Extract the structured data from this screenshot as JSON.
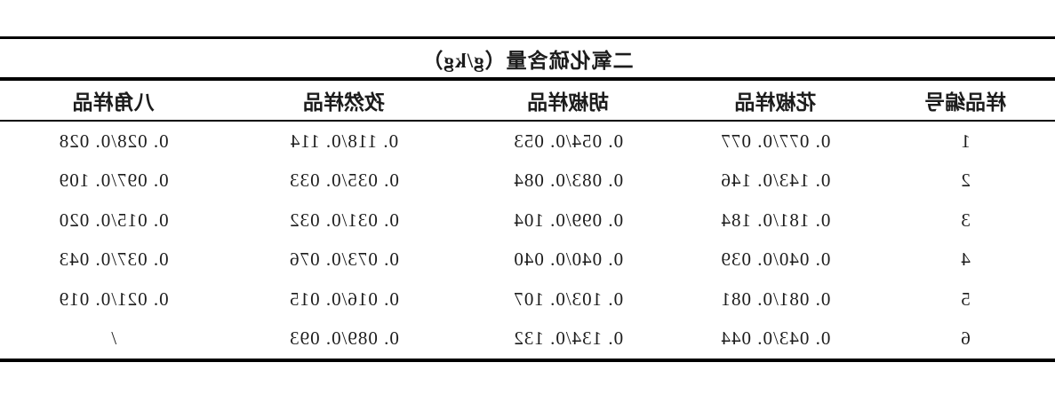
{
  "table": {
    "title": "二氧化硫含量（g/kg）",
    "mirrored_horizontally": true,
    "columns": [
      "样品编号",
      "花椒样品",
      "胡椒样品",
      "孜然样品",
      "八角样品"
    ],
    "rows": [
      [
        "1",
        "0. 077/0. 077",
        "0. 054/0. 053",
        "0. 118/0. 114",
        "0. 028/0. 028"
      ],
      [
        "2",
        "0. 143/0. 146",
        "0. 083/0. 084",
        "0. 035/0. 033",
        "0. 097/0. 109"
      ],
      [
        "3",
        "0. 181/0. 184",
        "0. 099/0. 104",
        "0. 031/0. 032",
        "0. 015/0. 020"
      ],
      [
        "4",
        "0. 040/0. 039",
        "0. 040/0. 040",
        "0. 073/0. 076",
        "0. 037/0. 043"
      ],
      [
        "5",
        "0. 081/0. 081",
        "0. 103/0. 107",
        "0. 016/0. 015",
        "0. 021/0. 019"
      ],
      [
        "6",
        "0. 043/0. 044",
        "0. 134/0. 132",
        "0. 089/0. 093",
        "/"
      ]
    ]
  },
  "colors": {
    "text": "#1c1c1c",
    "rule": "#000000",
    "background": "#ffffff"
  }
}
